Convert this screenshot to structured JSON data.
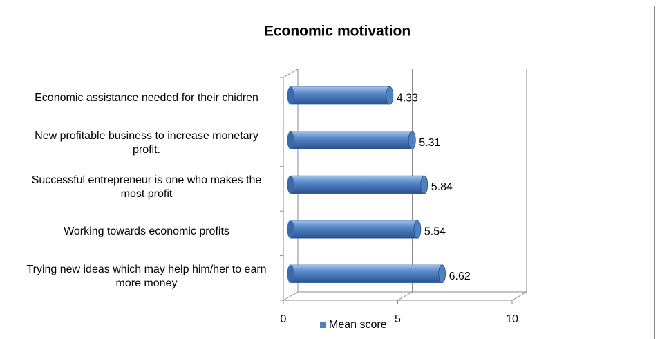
{
  "chart_data": {
    "type": "bar",
    "orientation": "horizontal",
    "title": "Economic motivation",
    "categories": [
      "Economic assistance needed for their chidren",
      "New profitable business to increase monetary profit.",
      "Successful entrepreneur is one who makes the most  profit",
      "Working towards economic profits",
      "Trying new ideas which may help him/her to earn more money"
    ],
    "series": [
      {
        "name": "Mean score",
        "color": "#4f81bd",
        "values": [
          4.33,
          5.31,
          5.84,
          5.54,
          6.62
        ]
      }
    ],
    "xlim": [
      0,
      10
    ],
    "xticks": [
      0,
      5,
      10
    ],
    "grid": true,
    "legend": "bottom",
    "data_labels": true
  }
}
